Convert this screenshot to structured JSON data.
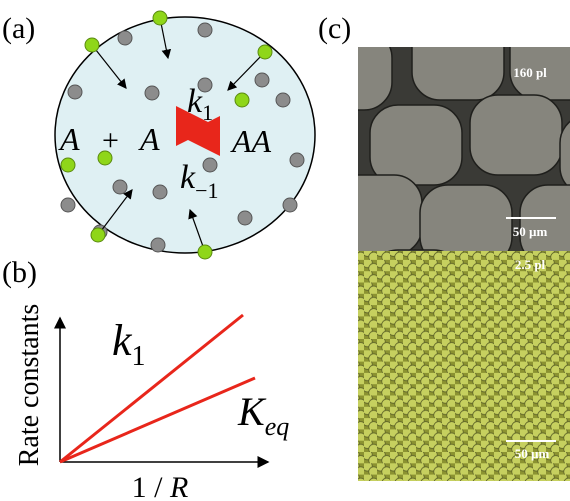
{
  "panels": [
    {
      "label": "(a)",
      "reaction": {
        "reactant": "A",
        "plus": "+",
        "reactant2": "A",
        "product": "AA",
        "forward": {
          "symbol": "k",
          "subscript": "1"
        },
        "reverse": {
          "symbol": "k",
          "subscript": "−1"
        }
      }
    },
    {
      "label": "(b)",
      "y_axis_label": "Rate constants",
      "x_axis_label": {
        "prefix": "1 / ",
        "variable": "R"
      },
      "lines": [
        {
          "symbol": "k",
          "subscript": "1"
        },
        {
          "symbol": "K",
          "subscript": "eq"
        }
      ]
    },
    {
      "label": "(c)",
      "images": [
        {
          "volume": "160 pl",
          "scale_bar": "50 µm"
        },
        {
          "volume": "2.5 pl",
          "scale_bar": "50 µm"
        }
      ]
    }
  ]
}
